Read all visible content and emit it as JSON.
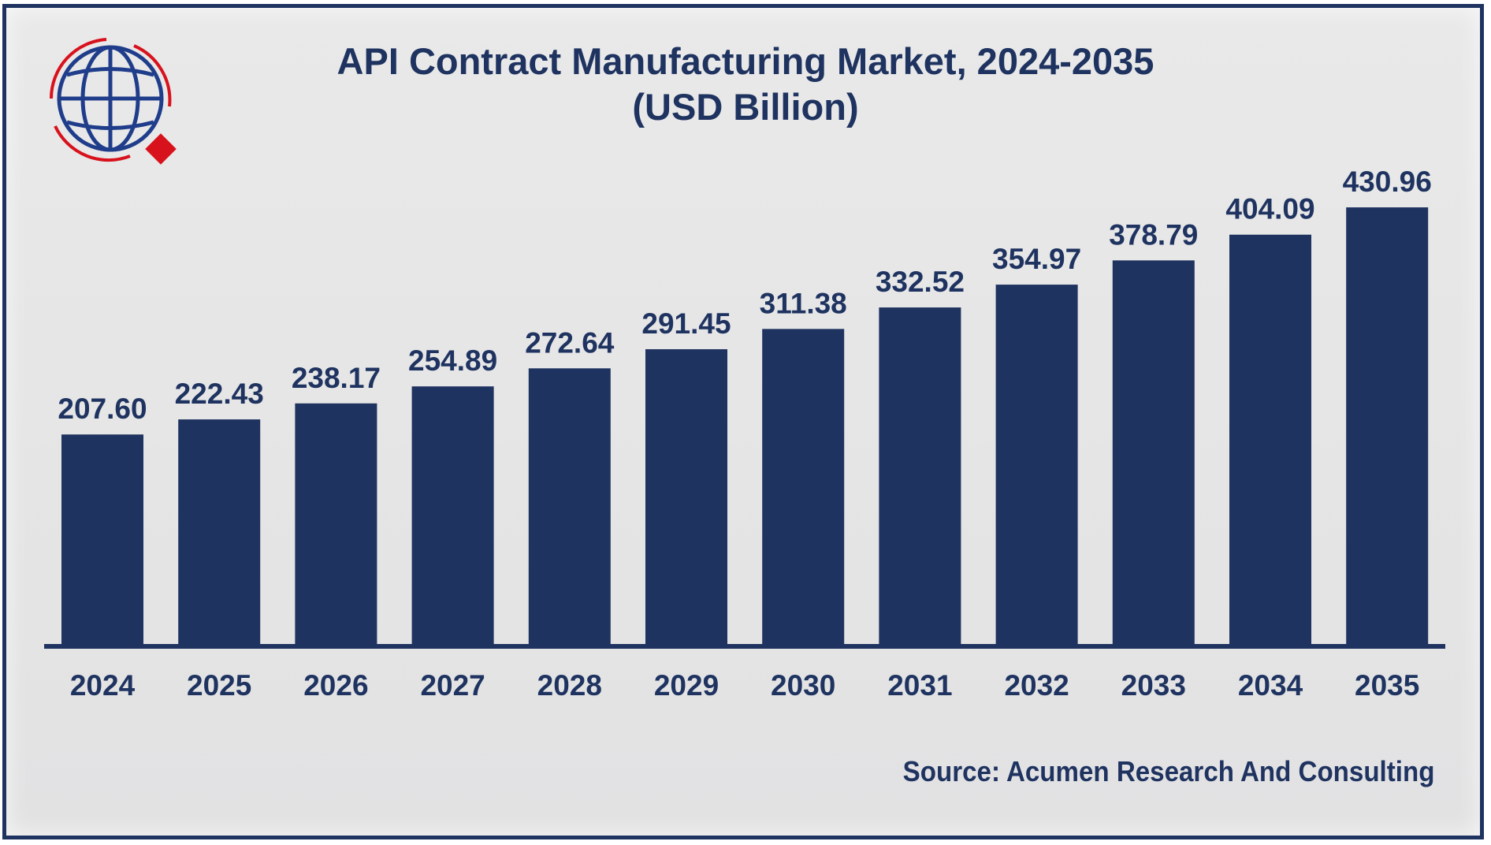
{
  "chart_data": {
    "type": "bar",
    "title": "API Contract Manufacturing Market, 2024-2035",
    "subtitle": "(USD Billion)",
    "categories": [
      "2024",
      "2025",
      "2026",
      "2027",
      "2028",
      "2029",
      "2030",
      "2031",
      "2032",
      "2033",
      "2034",
      "2035"
    ],
    "values": [
      207.6,
      222.43,
      238.17,
      254.89,
      272.64,
      291.45,
      311.38,
      332.52,
      354.97,
      378.79,
      404.09,
      430.96
    ],
    "labels": [
      "207.60",
      "222.43",
      "238.17",
      "254.89",
      "272.64",
      "291.45",
      "311.38",
      "332.52",
      "354.97",
      "378.79",
      "404.09",
      "430.96"
    ],
    "xlabel": "",
    "ylabel": "",
    "ylim": [
      0,
      440
    ],
    "grid": false,
    "bar_color": "#1f3360",
    "source": "Source: Acumen Research And Consulting"
  }
}
